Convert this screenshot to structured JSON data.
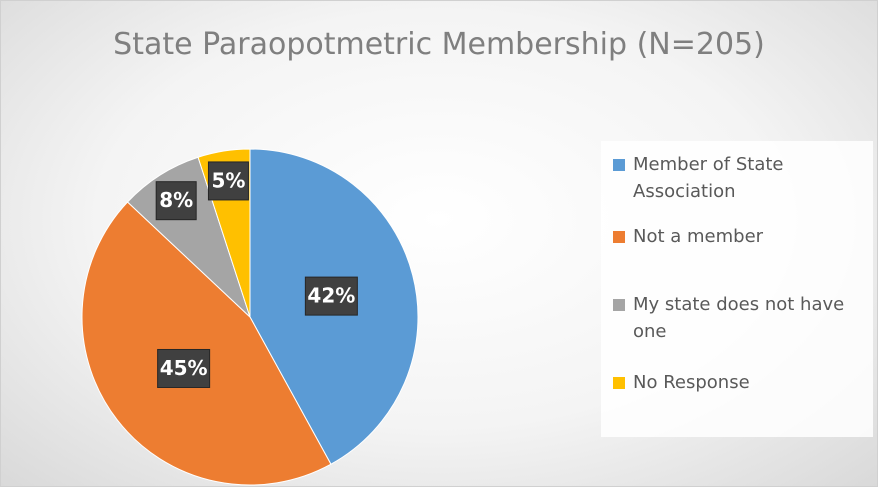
{
  "chart_data": {
    "type": "pie",
    "title": "State Paraopotmetric Membership (N=205)",
    "categories": [
      "Member of State Association",
      "Not a member",
      "My state does not have one",
      "No Response"
    ],
    "values": [
      42,
      45,
      8,
      5
    ],
    "value_labels": [
      "42%",
      "45%",
      "8%",
      "5%"
    ],
    "colors": [
      "#5b9bd5",
      "#ed7d31",
      "#a5a5a5",
      "#ffc000"
    ],
    "legend": "right"
  }
}
